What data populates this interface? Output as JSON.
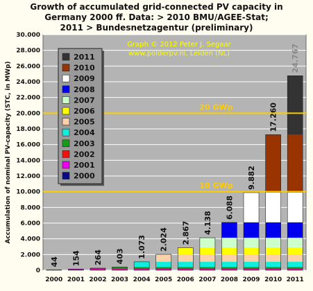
{
  "chart_data": {
    "type": "bar",
    "stacked": true,
    "title_lines": [
      "Growth of accumulated grid-connected PV capacity in",
      "Germany 2000 ff. Data: > 2010 BMU/AGEE-Stat;",
      "2011 > Bundesnetzagentur (preliminary)"
    ],
    "ylabel": "Accumulation of nominal PV-capacity (STC, in MWp)",
    "xlabel": "",
    "ylim": [
      0,
      30000
    ],
    "yticks": [
      "0",
      "2.000",
      "4.000",
      "6.000",
      "8.000",
      "10.000",
      "12.000",
      "14.000",
      "16.000",
      "18.000",
      "20.000",
      "22.000",
      "24.000",
      "26.000",
      "28.000",
      "30.000"
    ],
    "categories": [
      "2000",
      "2001",
      "2002",
      "2003",
      "2004",
      "2005",
      "2006",
      "2007",
      "2008",
      "2009",
      "2010",
      "2011"
    ],
    "totals": [
      44,
      154,
      264,
      403,
      1073,
      2024,
      2867,
      4138,
      6088,
      9882,
      17260,
      24767
    ],
    "total_labels": [
      "44",
      "154",
      "264",
      "403",
      "1.073",
      "2.024",
      "2.867",
      "4.138",
      "6.088",
      "9.882",
      "17.260",
      "24.767"
    ],
    "series": [
      {
        "name": "2000",
        "color": "#0a0a8c"
      },
      {
        "name": "2001",
        "color": "#ee00ee"
      },
      {
        "name": "2002",
        "color": "#ee1111"
      },
      {
        "name": "2003",
        "color": "#1a9a1a"
      },
      {
        "name": "2004",
        "color": "#11eedd"
      },
      {
        "name": "2005",
        "color": "#ffd1a8"
      },
      {
        "name": "2006",
        "color": "#ffff00"
      },
      {
        "name": "2007",
        "color": "#ccffcc"
      },
      {
        "name": "2008",
        "color": "#0000ee"
      },
      {
        "name": "2009",
        "color": "#ffffff"
      },
      {
        "name": "2010",
        "color": "#993300"
      },
      {
        "name": "2011",
        "color": "#333333"
      }
    ],
    "reference_lines": [
      {
        "value": 10000,
        "label": "10 GWp",
        "color": "#ffcc00"
      },
      {
        "value": 20000,
        "label": "20 GWp",
        "color": "#ffcc00"
      }
    ],
    "legend": {
      "position": "top-left",
      "order": [
        "2011",
        "2010",
        "2009",
        "2008",
        "2007",
        "2006",
        "2005",
        "2004",
        "2003",
        "2002",
        "2001",
        "2000"
      ]
    },
    "annotation": [
      "Graph © 2012 Peter J. Segaar",
      "www.polderpv.nl, Leiden (NL)"
    ],
    "grid": true,
    "plot_background": "#b4b4b4"
  }
}
